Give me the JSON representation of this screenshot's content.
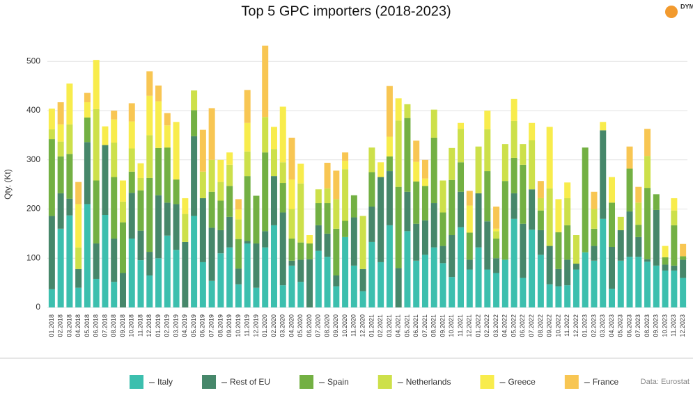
{
  "chart_data": {
    "type": "stacked_bar",
    "title": "Top 5 GPC importers (2018-2023)",
    "y_label": "Qty. (Kt)",
    "source": "Data: Eurostat",
    "logo": "DYM",
    "categories": [
      "01.2018",
      "02.2018",
      "03.2018",
      "04.2018",
      "05.2018",
      "06.2018",
      "07.2018",
      "08.2018",
      "09.2018",
      "10.2018",
      "11.2018",
      "12.2018",
      "01.2019",
      "02.2019",
      "03.2019",
      "04.2019",
      "05.2019",
      "06.2019",
      "07.2019",
      "08.2019",
      "09.2019",
      "10.2019",
      "11.2019",
      "12.2019",
      "01.2020",
      "02.2020",
      "03.2020",
      "04.2020",
      "05.2020",
      "06.2020",
      "07.2020",
      "08.2020",
      "09.2020",
      "10.2020",
      "11.2020",
      "12.2020",
      "01.2021",
      "02.2021",
      "03.2021",
      "04.2021",
      "05.2021",
      "06.2021",
      "07.2021",
      "08.2021",
      "09.2021",
      "10.2021",
      "11.2021",
      "12.2021",
      "01.2022",
      "02.2022",
      "03.2022",
      "04.2022",
      "05.2022",
      "06.2022",
      "07.2022",
      "08.2022",
      "09.2022",
      "10.2022",
      "11.2022",
      "12.2022",
      "01.2023",
      "02.2023",
      "03.2023",
      "04.2023",
      "05.2023",
      "06.2023",
      "07.2023",
      "08.2023",
      "09.2023",
      "10.2023",
      "11.2023",
      "12.2023"
    ],
    "series": [
      {
        "name": "Italy",
        "color": "#3cbfae",
        "values": [
          37,
          160,
          187,
          40,
          210,
          58,
          188,
          52,
          0,
          140,
          96,
          65,
          100,
          146,
          117,
          0,
          186,
          92,
          54,
          110,
          122,
          47,
          130,
          40,
          122,
          167,
          45,
          85,
          52,
          0,
          115,
          103,
          43,
          143,
          85,
          33,
          133,
          92,
          167,
          0,
          155,
          95,
          107,
          122,
          90,
          62,
          163,
          77,
          122,
          77,
          70,
          97,
          180,
          60,
          158,
          107,
          47,
          43,
          45,
          77,
          112,
          95,
          180,
          38,
          95,
          103,
          103,
          93,
          85,
          75,
          75,
          60
        ]
      },
      {
        "name": "Rest of EU",
        "color": "#46876a",
        "values": [
          149,
          72,
          34,
          38,
          126,
          72,
          142,
          88,
          70,
          93,
          60,
          48,
          128,
          67,
          93,
          133,
          162,
          130,
          108,
          47,
          62,
          32,
          5,
          90,
          33,
          100,
          148,
          10,
          45,
          98,
          52,
          47,
          22,
          0,
          98,
          45,
          72,
          173,
          110,
          80,
          80,
          75,
          70,
          90,
          35,
          85,
          72,
          20,
          110,
          98,
          30,
          0,
          52,
          110,
          82,
          50,
          78,
          35,
          52,
          12,
          0,
          30,
          180,
          85,
          62,
          92,
          40,
          5,
          113,
          12,
          10,
          37
        ]
      },
      {
        "name": "Spain",
        "color": "#73b043",
        "values": [
          156,
          75,
          91,
          0,
          50,
          128,
          0,
          125,
          103,
          43,
          82,
          150,
          96,
          112,
          50,
          0,
          53,
          0,
          73,
          60,
          63,
          60,
          132,
          97,
          160,
          0,
          60,
          45,
          35,
          32,
          45,
          62,
          95,
          33,
          45,
          0,
          70,
          0,
          30,
          165,
          150,
          86,
          70,
          133,
          68,
          112,
          60,
          55,
          0,
          102,
          40,
          160,
          72,
          120,
          0,
          40,
          0,
          75,
          70,
          0,
          213,
          35,
          0,
          90,
          0,
          87,
          25,
          145,
          32,
          15,
          82,
          7
        ]
      },
      {
        "name": "Netherlands",
        "color": "#cde04a",
        "values": [
          20,
          30,
          60,
          44,
          0,
          145,
          0,
          70,
          42,
          47,
          25,
          87,
          0,
          0,
          0,
          57,
          40,
          54,
          65,
          38,
          43,
          40,
          50,
          0,
          72,
          55,
          42,
          60,
          120,
          0,
          28,
          30,
          60,
          105,
          0,
          108,
          50,
          0,
          0,
          135,
          28,
          0,
          0,
          57,
          65,
          65,
          68,
          0,
          95,
          85,
          15,
          75,
          75,
          42,
          100,
          25,
          117,
          0,
          55,
          58,
          0,
          40,
          0,
          0,
          27,
          0,
          45,
          65,
          0,
          0,
          30,
          0
        ]
      },
      {
        "name": "Greece",
        "color": "#f8ec4c",
        "values": [
          42,
          35,
          83,
          88,
          31,
          100,
          38,
          47,
          43,
          55,
          30,
          80,
          95,
          45,
          117,
          32,
          0,
          0,
          0,
          45,
          25,
          20,
          58,
          0,
          0,
          45,
          113,
          60,
          40,
          17,
          0,
          0,
          0,
          17,
          0,
          0,
          0,
          30,
          40,
          45,
          0,
          40,
          15,
          0,
          0,
          0,
          12,
          55,
          0,
          38,
          5,
          0,
          45,
          0,
          35,
          0,
          125,
          67,
          32,
          0,
          0,
          0,
          17,
          52,
          0,
          0,
          0,
          0,
          0,
          23,
          25,
          0
        ]
      },
      {
        "name": "France",
        "color": "#f8c653",
        "values": [
          0,
          45,
          0,
          45,
          19,
          0,
          0,
          18,
          0,
          37,
          0,
          50,
          32,
          25,
          0,
          0,
          0,
          85,
          105,
          0,
          0,
          21,
          67,
          0,
          145,
          0,
          0,
          85,
          0,
          0,
          0,
          52,
          58,
          17,
          0,
          0,
          0,
          0,
          103,
          0,
          0,
          43,
          38,
          0,
          0,
          0,
          0,
          30,
          0,
          0,
          45,
          0,
          0,
          0,
          0,
          35,
          0,
          0,
          0,
          0,
          0,
          35,
          0,
          0,
          0,
          45,
          32,
          55,
          0,
          0,
          0,
          25
        ]
      }
    ],
    "ylim": [
      0,
      540
    ],
    "yticks": [
      0,
      100,
      200,
      300,
      400,
      500
    ],
    "grid": true
  }
}
